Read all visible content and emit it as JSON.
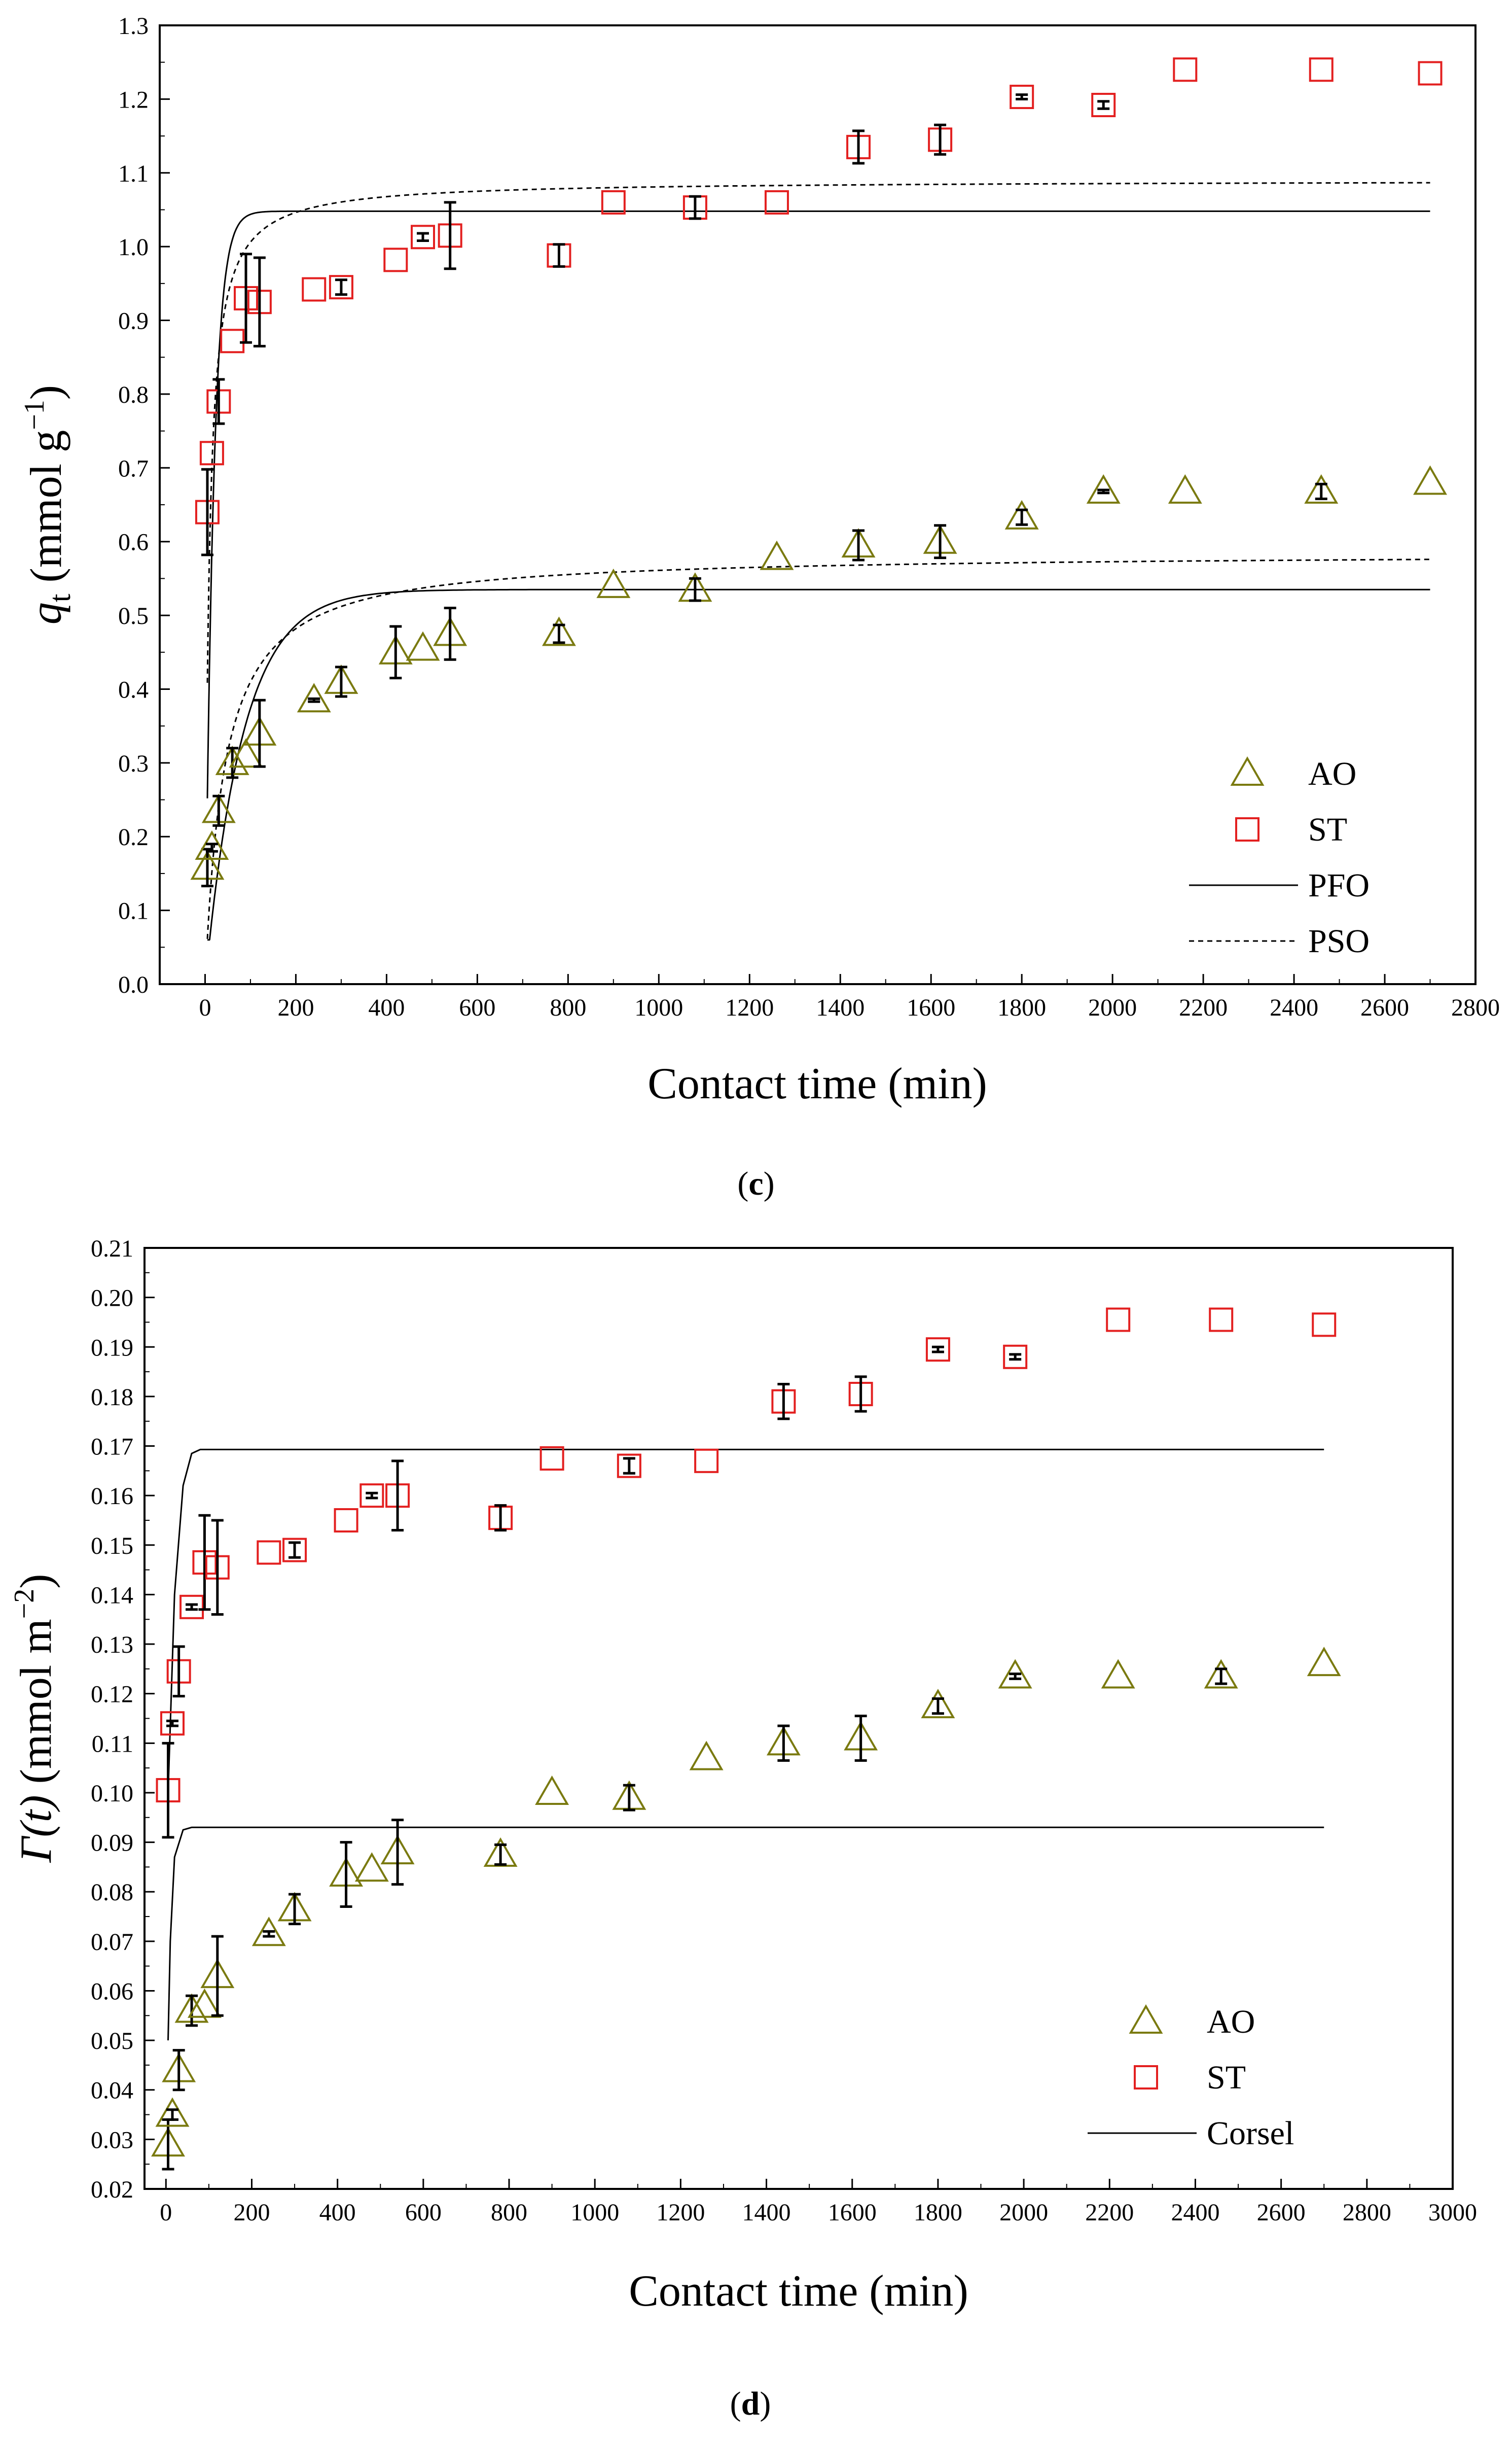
{
  "chart_data": [
    {
      "type": "scatter",
      "panel_label": "c",
      "xlabel": "Contact time (min)",
      "ylabel": {
        "prefix": "q",
        "sub": "t",
        "unit_open": " (mmol g",
        "sup": "−1",
        "unit_close": ")"
      },
      "xlim": [
        -100,
        2800
      ],
      "ylim": [
        0.0,
        1.3
      ],
      "xticks": [
        0,
        200,
        400,
        600,
        800,
        1000,
        1200,
        1400,
        1600,
        1800,
        2000,
        2200,
        2400,
        2600,
        2800
      ],
      "yticks": [
        "0.0",
        "0.1",
        "0.2",
        "0.3",
        "0.4",
        "0.5",
        "0.6",
        "0.7",
        "0.8",
        "0.9",
        "1.0",
        "1.1",
        "1.2",
        "1.3"
      ],
      "legend": {
        "placement": "bottom-right",
        "entries": [
          "AO",
          "ST",
          "PFO",
          "PSO"
        ]
      },
      "series": [
        {
          "name": "AO",
          "marker": "triangle",
          "color": "#7a7a10",
          "points": [
            {
              "x": 5,
              "y": 0.158,
              "err": 0.025
            },
            {
              "x": 15,
              "y": 0.185,
              "err": 0.005
            },
            {
              "x": 30,
              "y": 0.235,
              "err": 0.02
            },
            {
              "x": 60,
              "y": 0.3,
              "err": 0.02
            },
            {
              "x": 90,
              "y": 0.31,
              "err": 0.0
            },
            {
              "x": 120,
              "y": 0.34,
              "err": 0.045
            },
            {
              "x": 240,
              "y": 0.385,
              "err": 0.002
            },
            {
              "x": 300,
              "y": 0.41,
              "err": 0.02
            },
            {
              "x": 420,
              "y": 0.45,
              "err": 0.035
            },
            {
              "x": 480,
              "y": 0.455,
              "err": 0.0
            },
            {
              "x": 540,
              "y": 0.475,
              "err": 0.035
            },
            {
              "x": 780,
              "y": 0.475,
              "err": 0.012
            },
            {
              "x": 900,
              "y": 0.54,
              "err": 0.0
            },
            {
              "x": 1080,
              "y": 0.535,
              "err": 0.015
            },
            {
              "x": 1260,
              "y": 0.578,
              "err": 0.0
            },
            {
              "x": 1440,
              "y": 0.595,
              "err": 0.02
            },
            {
              "x": 1620,
              "y": 0.6,
              "err": 0.022
            },
            {
              "x": 1800,
              "y": 0.633,
              "err": 0.01
            },
            {
              "x": 1980,
              "y": 0.668,
              "err": 0.002
            },
            {
              "x": 2160,
              "y": 0.668,
              "err": 0.0
            },
            {
              "x": 2460,
              "y": 0.668,
              "err": 0.01
            },
            {
              "x": 2700,
              "y": 0.68,
              "err": 0.0
            }
          ]
        },
        {
          "name": "ST",
          "marker": "square",
          "color": "#e32020",
          "points": [
            {
              "x": 5,
              "y": 0.64,
              "err": 0.058
            },
            {
              "x": 15,
              "y": 0.72,
              "err": 0.0
            },
            {
              "x": 30,
              "y": 0.79,
              "err": 0.03
            },
            {
              "x": 60,
              "y": 0.872,
              "err": 0.0
            },
            {
              "x": 90,
              "y": 0.93,
              "err": 0.06
            },
            {
              "x": 120,
              "y": 0.925,
              "err": 0.06
            },
            {
              "x": 240,
              "y": 0.942,
              "err": 0.0
            },
            {
              "x": 300,
              "y": 0.945,
              "err": 0.01
            },
            {
              "x": 420,
              "y": 0.982,
              "err": 0.0
            },
            {
              "x": 480,
              "y": 1.013,
              "err": 0.005
            },
            {
              "x": 540,
              "y": 1.015,
              "err": 0.045
            },
            {
              "x": 780,
              "y": 0.988,
              "err": 0.015
            },
            {
              "x": 900,
              "y": 1.06,
              "err": 0.0
            },
            {
              "x": 1080,
              "y": 1.053,
              "err": 0.015
            },
            {
              "x": 1260,
              "y": 1.06,
              "err": 0.0
            },
            {
              "x": 1440,
              "y": 1.135,
              "err": 0.022
            },
            {
              "x": 1620,
              "y": 1.145,
              "err": 0.02
            },
            {
              "x": 1800,
              "y": 1.203,
              "err": 0.003
            },
            {
              "x": 1980,
              "y": 1.192,
              "err": 0.005
            },
            {
              "x": 2160,
              "y": 1.24,
              "err": 0.0
            },
            {
              "x": 2460,
              "y": 1.24,
              "err": 0.0
            },
            {
              "x": 2700,
              "y": 1.235,
              "err": 0.0
            }
          ]
        }
      ],
      "fits": [
        {
          "name": "PFO",
          "style": "solid",
          "target": "AO",
          "qe": 0.535,
          "k": 0.012,
          "t_start": 5,
          "t_end": 2700
        },
        {
          "name": "PSO",
          "style": "dashed",
          "target": "AO",
          "qe": 0.585,
          "k": 0.04,
          "t_start": 5,
          "t_end": 2700
        },
        {
          "name": "PFO",
          "style": "solid",
          "target": "ST",
          "qe": 1.048,
          "k": 0.055,
          "t_start": 5,
          "t_end": 2700
        },
        {
          "name": "PSO",
          "style": "dashed",
          "target": "ST",
          "qe": 1.09,
          "k": 0.11,
          "t_start": 5,
          "t_end": 2700
        }
      ]
    },
    {
      "type": "scatter",
      "panel_label": "d",
      "xlabel": "Contact time (min)",
      "ylabel": {
        "prefix": "Γ(t)",
        "sub": "",
        "unit_open": " (mmol m",
        "sup": "−2",
        "unit_close": ")"
      },
      "xlim": [
        -50,
        3000
      ],
      "ylim": [
        0.02,
        0.21
      ],
      "xticks": [
        0,
        200,
        400,
        600,
        800,
        1000,
        1200,
        1400,
        1600,
        1800,
        2000,
        2200,
        2400,
        2600,
        2800,
        3000
      ],
      "yticks": [
        "0.02",
        "0.03",
        "0.04",
        "0.05",
        "0.06",
        "0.07",
        "0.08",
        "0.09",
        "0.10",
        "0.11",
        "0.12",
        "0.13",
        "0.14",
        "0.15",
        "0.16",
        "0.17",
        "0.18",
        "0.19",
        "0.20",
        "0.21"
      ],
      "legend": {
        "placement": "bottom-right",
        "entries": [
          "AO",
          "ST",
          "Corsel"
        ]
      },
      "series": [
        {
          "name": "AO",
          "marker": "triangle",
          "color": "#7a7a10",
          "points": [
            {
              "x": 5,
              "y": 0.029,
              "err": 0.005
            },
            {
              "x": 15,
              "y": 0.035,
              "err": 0.001
            },
            {
              "x": 30,
              "y": 0.044,
              "err": 0.004
            },
            {
              "x": 60,
              "y": 0.056,
              "err": 0.003
            },
            {
              "x": 90,
              "y": 0.057,
              "err": 0.0
            },
            {
              "x": 120,
              "y": 0.063,
              "err": 0.008
            },
            {
              "x": 240,
              "y": 0.0715,
              "err": 0.0005
            },
            {
              "x": 300,
              "y": 0.0765,
              "err": 0.003
            },
            {
              "x": 420,
              "y": 0.0835,
              "err": 0.0065
            },
            {
              "x": 480,
              "y": 0.0845,
              "err": 0.0
            },
            {
              "x": 540,
              "y": 0.088,
              "err": 0.0065
            },
            {
              "x": 780,
              "y": 0.0875,
              "err": 0.002
            },
            {
              "x": 900,
              "y": 0.1,
              "err": 0.0
            },
            {
              "x": 1080,
              "y": 0.099,
              "err": 0.0025
            },
            {
              "x": 1260,
              "y": 0.107,
              "err": 0.0
            },
            {
              "x": 1440,
              "y": 0.11,
              "err": 0.0035
            },
            {
              "x": 1620,
              "y": 0.111,
              "err": 0.0045
            },
            {
              "x": 1800,
              "y": 0.1175,
              "err": 0.0015
            },
            {
              "x": 1980,
              "y": 0.1235,
              "err": 0.0005
            },
            {
              "x": 2220,
              "y": 0.1235,
              "err": 0.0
            },
            {
              "x": 2460,
              "y": 0.1235,
              "err": 0.0015
            },
            {
              "x": 2700,
              "y": 0.126,
              "err": 0.0
            }
          ]
        },
        {
          "name": "ST",
          "marker": "square",
          "color": "#e32020",
          "points": [
            {
              "x": 5,
              "y": 0.1005,
              "err": 0.0095
            },
            {
              "x": 15,
              "y": 0.114,
              "err": 0.0005
            },
            {
              "x": 30,
              "y": 0.1245,
              "err": 0.005
            },
            {
              "x": 60,
              "y": 0.1375,
              "err": 0.0005
            },
            {
              "x": 90,
              "y": 0.1465,
              "err": 0.0095
            },
            {
              "x": 120,
              "y": 0.1455,
              "err": 0.0095
            },
            {
              "x": 240,
              "y": 0.1485,
              "err": 0.0
            },
            {
              "x": 300,
              "y": 0.149,
              "err": 0.0015
            },
            {
              "x": 420,
              "y": 0.155,
              "err": 0.0
            },
            {
              "x": 480,
              "y": 0.16,
              "err": 0.0005
            },
            {
              "x": 540,
              "y": 0.16,
              "err": 0.007
            },
            {
              "x": 780,
              "y": 0.1555,
              "err": 0.0025
            },
            {
              "x": 900,
              "y": 0.1675,
              "err": 0.0
            },
            {
              "x": 1080,
              "y": 0.166,
              "err": 0.0015
            },
            {
              "x": 1260,
              "y": 0.167,
              "err": 0.0
            },
            {
              "x": 1440,
              "y": 0.179,
              "err": 0.0035
            },
            {
              "x": 1620,
              "y": 0.1805,
              "err": 0.0035
            },
            {
              "x": 1800,
              "y": 0.1895,
              "err": 0.0005
            },
            {
              "x": 1980,
              "y": 0.188,
              "err": 0.0005
            },
            {
              "x": 2220,
              "y": 0.1955,
              "err": 0.0
            },
            {
              "x": 2460,
              "y": 0.1955,
              "err": 0.0
            },
            {
              "x": 2700,
              "y": 0.1945,
              "err": 0.0
            }
          ]
        }
      ],
      "fits": [
        {
          "name": "Corsel",
          "style": "solid",
          "target": "AO",
          "points": [
            [
              5,
              0.05
            ],
            [
              10,
              0.07
            ],
            [
              20,
              0.087
            ],
            [
              40,
              0.0925
            ],
            [
              60,
              0.093
            ],
            [
              2700,
              0.093
            ]
          ]
        },
        {
          "name": "Corsel",
          "style": "solid",
          "target": "ST",
          "points": [
            [
              5,
              0.1
            ],
            [
              20,
              0.14
            ],
            [
              40,
              0.162
            ],
            [
              60,
              0.1685
            ],
            [
              80,
              0.1693
            ],
            [
              2700,
              0.1693
            ]
          ]
        }
      ]
    }
  ]
}
